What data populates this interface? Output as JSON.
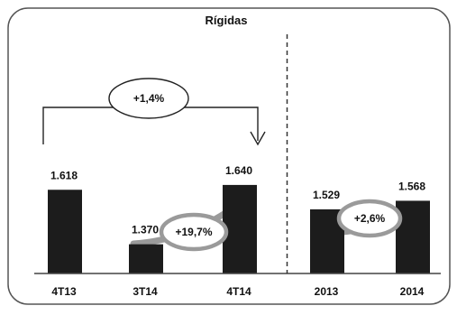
{
  "chart_data": {
    "type": "bar",
    "title": "Rígidas",
    "categories": [
      "4T13",
      "3T14",
      "4T14",
      "2013",
      "2014"
    ],
    "values": [
      1618,
      1370,
      1640,
      1529,
      1568
    ],
    "value_labels": [
      "1.618",
      "1.370",
      "1.640",
      "1.529",
      "1.568"
    ],
    "xlabel": "",
    "ylabel": "",
    "grid": false,
    "legend": "none",
    "annotations": [
      {
        "label": "+1,4%",
        "from": "4T13",
        "to": "4T14",
        "style": "bracket-arrow"
      },
      {
        "label": "+19,7%",
        "from": "3T14",
        "to": "4T14",
        "style": "oval-arrow"
      },
      {
        "label": "+2,6%",
        "from": "2013",
        "to": "2014",
        "style": "oval-arrow"
      }
    ],
    "divider_after_category": "4T14"
  },
  "colors": {
    "bar": "#1c1c1c",
    "frame": "#555555",
    "axis": "#444444",
    "divider": "#333333",
    "arrow_gray": "#9a9a9a",
    "oval_stroke": "#9a9a9a",
    "oval_fill": "#ffffff",
    "text": "#111111"
  }
}
